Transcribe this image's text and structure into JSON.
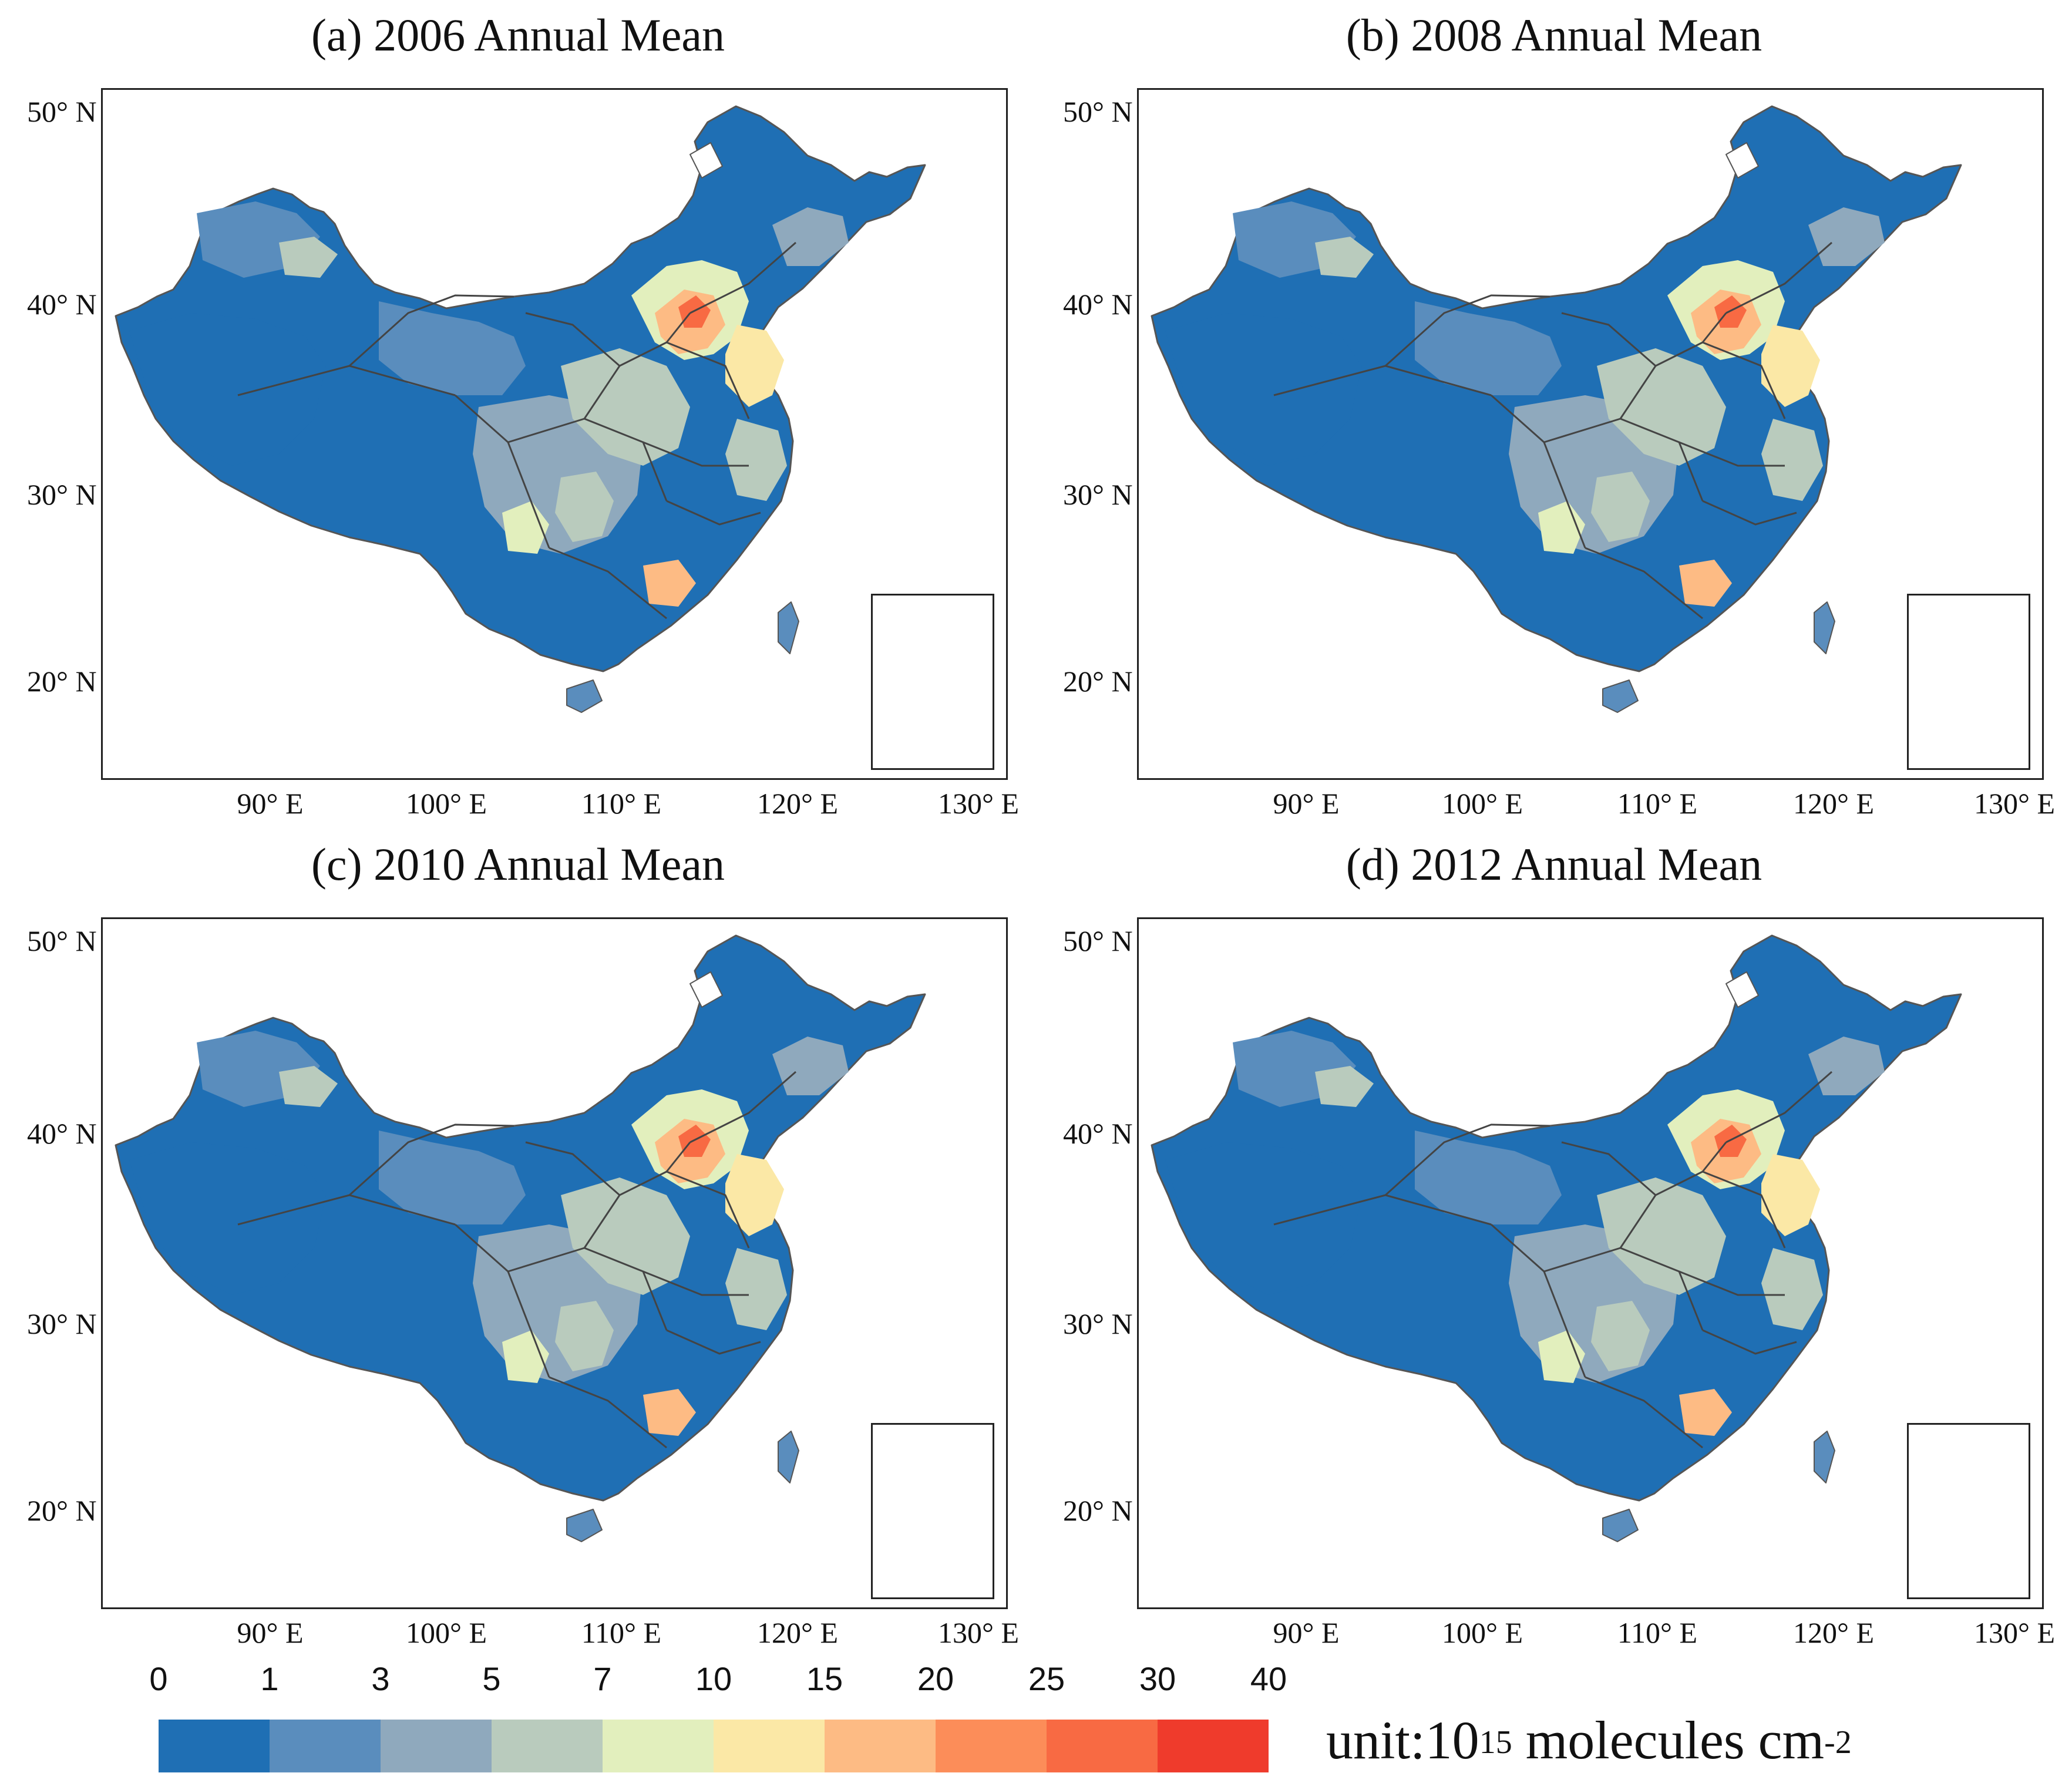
{
  "panels": [
    {
      "title": "(a) 2006 Annual Mean"
    },
    {
      "title": "(b) 2008 Annual Mean"
    },
    {
      "title": "(c) 2010 Annual Mean"
    },
    {
      "title": "(d) 2012 Annual Mean"
    }
  ],
  "axes": {
    "lat_labels": [
      "50° N",
      "40° N",
      "30° N",
      "20° N"
    ],
    "lon_labels": [
      "90° E",
      "100° E",
      "110° E",
      "120° E",
      "130° E"
    ]
  },
  "legend": {
    "ticks": [
      "0",
      "1",
      "3",
      "5",
      "7",
      "10",
      "15",
      "20",
      "25",
      "30",
      "40"
    ],
    "colors": [
      "#1f6fb4",
      "#5a8dbd",
      "#8fa9bd",
      "#b9cbbd",
      "#e2efbd",
      "#fbe8a6",
      "#fdbb84",
      "#fc8d59",
      "#f86a43",
      "#ef3b2c"
    ],
    "unit_prefix": "unit:10",
    "unit_exp1": "15",
    "unit_mid": " molecules cm",
    "unit_exp2": "-2"
  }
}
